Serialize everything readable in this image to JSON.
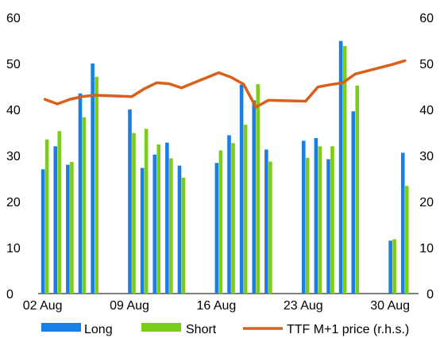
{
  "chart_data": {
    "type": "bar",
    "y_left": {
      "min": 0,
      "max": 60,
      "ticks": [
        0,
        10,
        20,
        30,
        40,
        50,
        60
      ]
    },
    "y_right": {
      "min": 0,
      "max": 60,
      "ticks": [
        0,
        10,
        20,
        30,
        40,
        50,
        60
      ]
    },
    "x_tick_labels": [
      "02 Aug",
      "09 Aug",
      "16 Aug",
      "23 Aug",
      "30 Aug"
    ],
    "grid": false,
    "legend_position": "bottom",
    "dates": [
      "2021-08-02",
      "2021-08-03",
      "2021-08-04",
      "2021-08-05",
      "2021-08-06",
      "2021-08-09",
      "2021-08-10",
      "2021-08-11",
      "2021-08-12",
      "2021-08-13",
      "2021-08-16",
      "2021-08-17",
      "2021-08-18",
      "2021-08-19",
      "2021-08-20",
      "2021-08-23",
      "2021-08-24",
      "2021-08-25",
      "2021-08-26",
      "2021-08-27",
      "2021-08-30",
      "2021-08-31"
    ],
    "series": [
      {
        "name": "Long",
        "kind": "bar",
        "axis": "left",
        "color": "#1a7fe5",
        "values": [
          27.0,
          32.0,
          28.0,
          43.5,
          50.0,
          40.0,
          27.3,
          30.2,
          32.8,
          27.8,
          28.4,
          34.4,
          45.4,
          42.0,
          31.3,
          33.2,
          33.8,
          29.2,
          54.9,
          39.6,
          11.5,
          30.6
        ]
      },
      {
        "name": "Short",
        "kind": "bar",
        "axis": "left",
        "color": "#7ccc1a",
        "values": [
          33.5,
          35.3,
          28.6,
          38.3,
          47.1,
          34.9,
          35.8,
          32.4,
          29.4,
          25.2,
          31.1,
          32.7,
          36.7,
          45.5,
          28.7,
          29.5,
          32.0,
          32.0,
          53.8,
          45.2,
          11.8,
          23.4
        ]
      },
      {
        "name": "TTF M+1 price (r.h.s.)",
        "kind": "line",
        "axis": "right",
        "color": "#d9601a",
        "values": [
          42.2,
          41.2,
          42.2,
          42.8,
          43.1,
          42.8,
          44.5,
          45.8,
          45.6,
          44.7,
          48.0,
          47.0,
          45.5,
          40.5,
          42.0,
          41.8,
          44.9,
          45.4,
          45.8,
          47.7,
          49.8,
          50.6
        ]
      }
    ]
  }
}
